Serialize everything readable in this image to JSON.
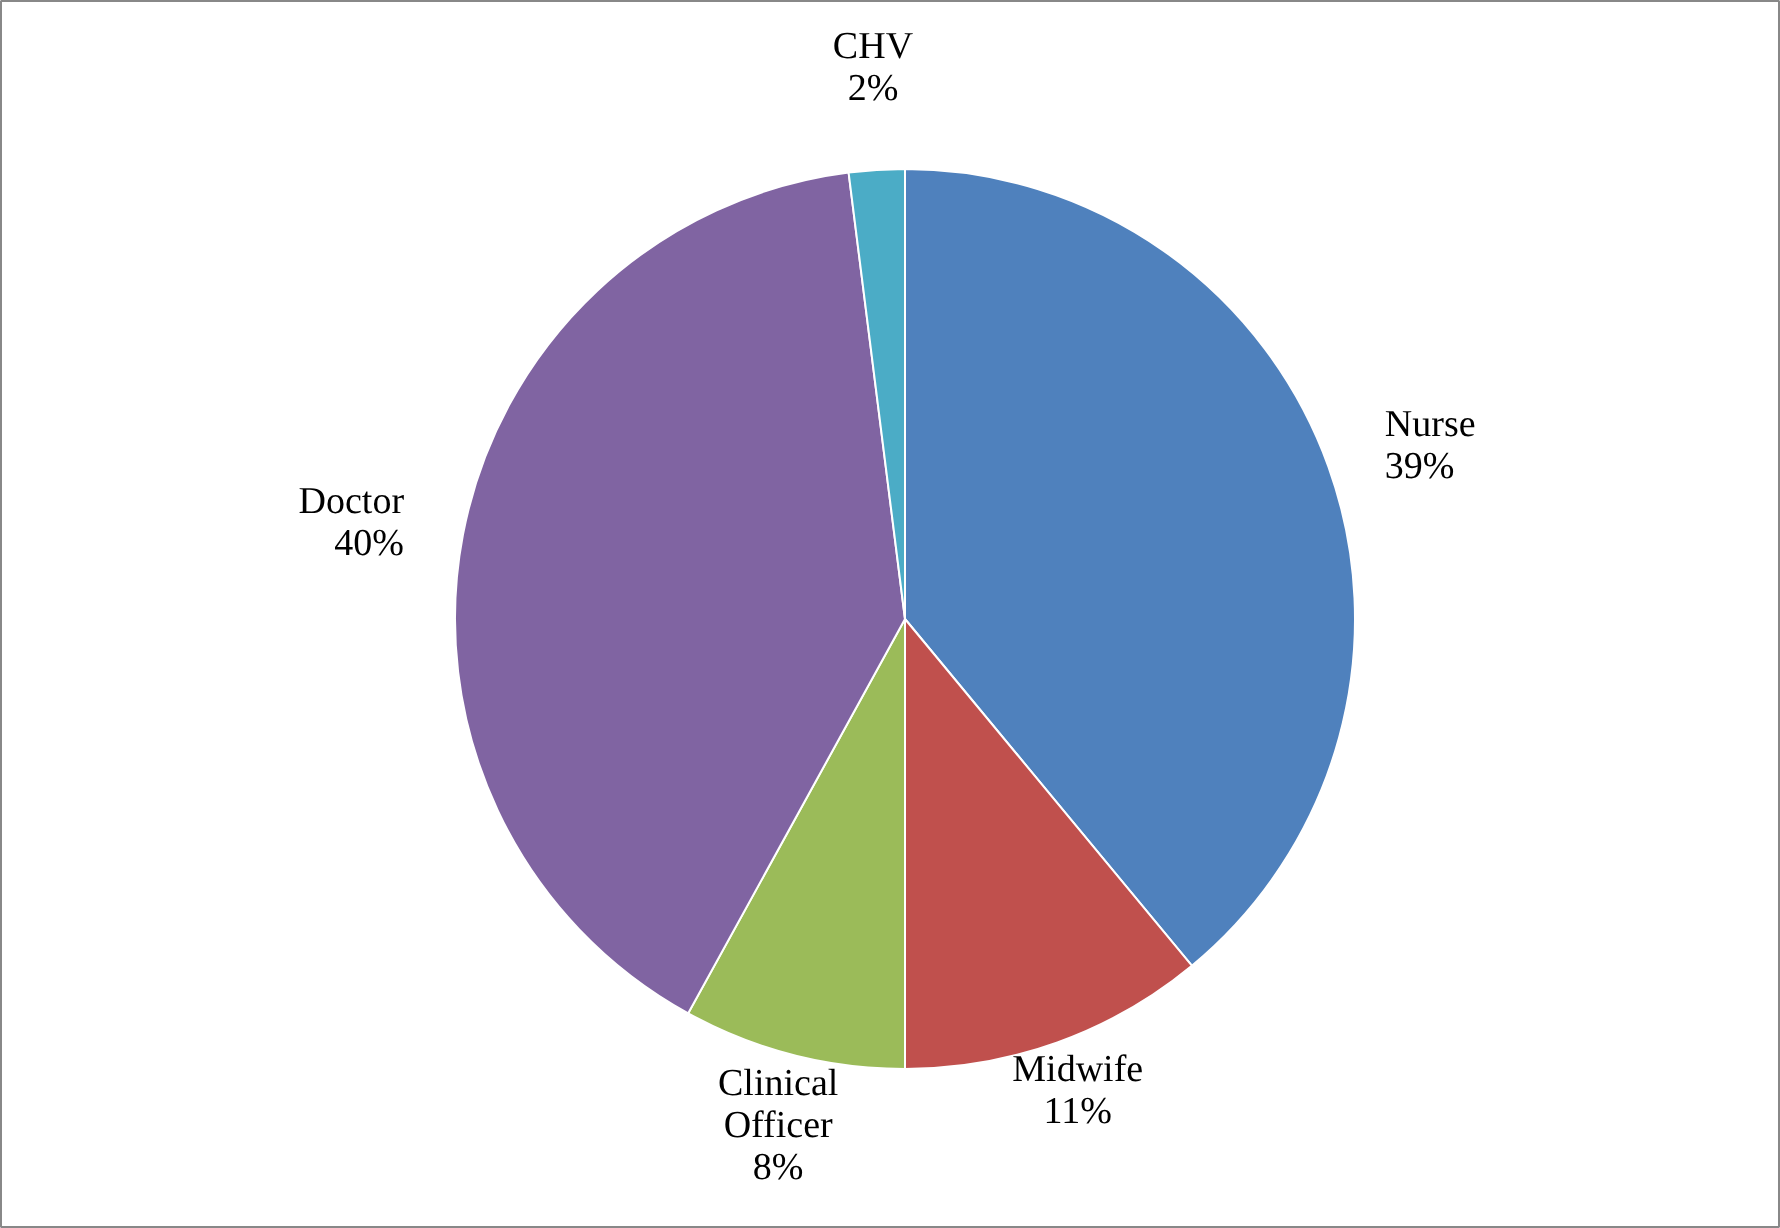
{
  "chart_data": {
    "type": "pie",
    "categories": [
      "Nurse",
      "Midwife",
      "Clinical Officer",
      "Doctor",
      "CHV"
    ],
    "values": [
      39,
      11,
      8,
      40,
      2
    ],
    "value_labels": [
      "39%",
      "11%",
      "8%",
      "40%",
      "2%"
    ],
    "colors": [
      "#4f81bd",
      "#c0504d",
      "#9bbb59",
      "#8064a2",
      "#4bacc6"
    ]
  }
}
